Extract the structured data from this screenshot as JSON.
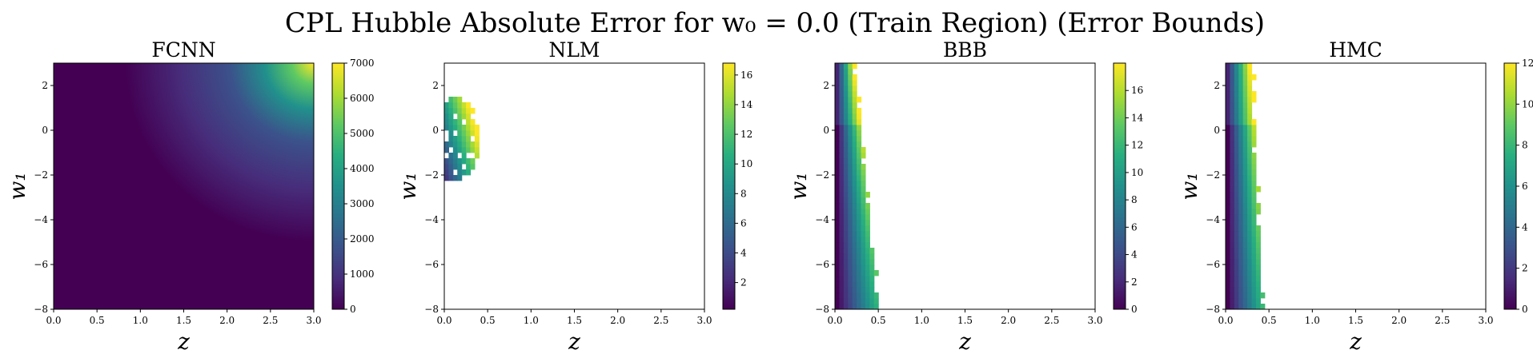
{
  "figure": {
    "title": "CPL Hubble Absolute Error for w₀ = 0.0 (Train Region) (Error Bounds)"
  },
  "chart_data": [
    {
      "type": "heatmap",
      "title": "FCNN",
      "xlabel": "z",
      "ylabel": "w₁",
      "xlim": [
        0.0,
        3.0
      ],
      "ylim": [
        -8,
        3
      ],
      "x_ticks": [
        "0.0",
        "0.5",
        "1.0",
        "1.5",
        "2.0",
        "2.5",
        "3.0"
      ],
      "y_ticks": [
        "−8",
        "−6",
        "−4",
        "−2",
        "0",
        "2"
      ],
      "colorbar": {
        "min": 0,
        "max": 7000,
        "ticks": [
          "0",
          "1000",
          "2000",
          "3000",
          "4000",
          "5000",
          "6000",
          "7000"
        ]
      },
      "colormap": "viridis",
      "description_of_field": "error near 0 across most of the domain, rising smoothly toward top-right; max about 7000 at z=3, w1=3",
      "peak": {
        "z": 3.0,
        "w1": 3.0,
        "value": 7000
      }
    },
    {
      "type": "heatmap",
      "title": "NLM",
      "xlabel": "z",
      "ylabel": "w₁",
      "xlim": [
        0.0,
        3.0
      ],
      "ylim": [
        -8,
        3
      ],
      "x_ticks": [
        "0.0",
        "0.5",
        "1.0",
        "1.5",
        "2.0",
        "2.5",
        "3.0"
      ],
      "y_ticks": [
        "−8",
        "−6",
        "−4",
        "−2",
        "0",
        "2"
      ],
      "colorbar": {
        "min": 0.2,
        "max": 16.8,
        "ticks": [
          "2",
          "4",
          "6",
          "8",
          "10",
          "12",
          "14",
          "16"
        ]
      },
      "colormap": "viridis",
      "region": {
        "z": [
          0.0,
          0.35
        ],
        "w1": [
          -2.4,
          1.4
        ]
      }
    },
    {
      "type": "heatmap",
      "title": "BBB",
      "xlabel": "z",
      "ylabel": "w₁",
      "xlim": [
        0.0,
        3.0
      ],
      "ylim": [
        -8,
        3
      ],
      "x_ticks": [
        "0.0",
        "0.5",
        "1.0",
        "1.5",
        "2.0",
        "2.5",
        "3.0"
      ],
      "y_ticks": [
        "−8",
        "−6",
        "−4",
        "−2",
        "0",
        "2"
      ],
      "colorbar": {
        "min": 0,
        "max": 18,
        "ticks": [
          "0",
          "2",
          "4",
          "6",
          "8",
          "10",
          "12",
          "14",
          "16"
        ]
      },
      "colormap": "viridis",
      "region": {
        "z": [
          0.0,
          0.5
        ],
        "w1": [
          -8,
          3
        ]
      }
    },
    {
      "type": "heatmap",
      "title": "HMC",
      "xlabel": "z",
      "ylabel": "w₁",
      "xlim": [
        0.0,
        3.0
      ],
      "ylim": [
        -8,
        3
      ],
      "x_ticks": [
        "0.0",
        "0.5",
        "1.0",
        "1.5",
        "2.0",
        "2.5",
        "3.0"
      ],
      "y_ticks": [
        "−8",
        "−6",
        "−4",
        "−2",
        "0",
        "2"
      ],
      "colorbar": {
        "min": 0,
        "max": 12,
        "ticks": [
          "0",
          "2",
          "4",
          "6",
          "8",
          "10",
          "12"
        ]
      },
      "colormap": "viridis",
      "region": {
        "z": [
          0.0,
          0.45
        ],
        "w1": [
          -8,
          3
        ]
      }
    }
  ]
}
